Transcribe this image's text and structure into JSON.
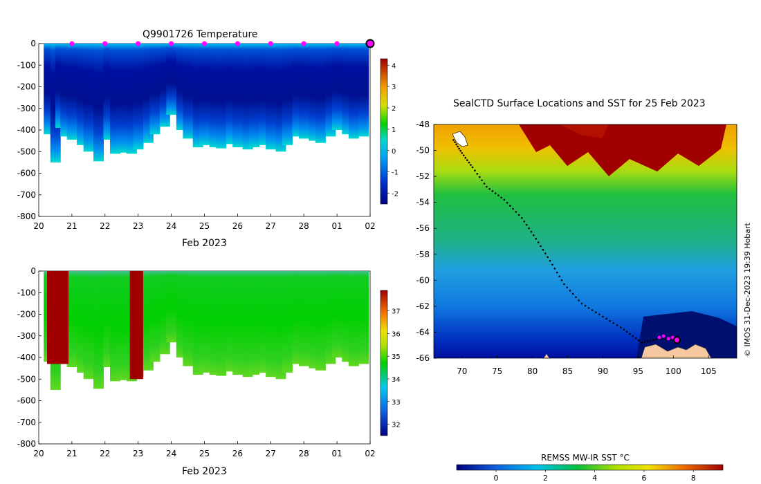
{
  "chart_data": [
    {
      "type": "heatmap",
      "title": "Q9901726  Temperature",
      "xlabel": "Feb 2023",
      "ylabel": "",
      "x_tick_labels": [
        "20",
        "21",
        "22",
        "23",
        "24",
        "25",
        "26",
        "27",
        "28",
        "01",
        "02"
      ],
      "y_tick_labels": [
        "0",
        "-100",
        "-200",
        "-300",
        "-400",
        "-500",
        "-600",
        "-700",
        "-800"
      ],
      "ylim": [
        -800,
        0
      ],
      "xlim_days": [
        0,
        10
      ],
      "colorbar": {
        "ticks": [
          "4",
          "3",
          "2",
          "1",
          "0",
          "-1",
          "-2"
        ],
        "range": [
          -2.5,
          4.3
        ]
      },
      "profile_day_offsets": [
        0.3,
        0.5,
        0.65,
        0.8,
        1.0,
        1.3,
        1.5,
        1.8,
        2.1,
        2.3,
        2.5,
        2.8,
        3.0,
        3.3,
        3.5,
        3.8,
        4.0,
        4.3,
        4.5,
        4.8,
        5.0,
        5.3,
        5.5,
        5.8,
        6.0,
        6.3,
        6.5,
        6.8,
        7.0,
        7.3,
        7.5,
        7.8,
        8.0,
        8.3,
        8.5,
        8.8,
        9.0,
        9.3,
        9.5,
        9.8
      ],
      "profile_max_depths": [
        -420,
        -550,
        -390,
        -430,
        -445,
        -470,
        -500,
        -545,
        -445,
        -510,
        -505,
        -510,
        -490,
        -460,
        -420,
        -385,
        -330,
        -400,
        -440,
        -480,
        -470,
        -480,
        -485,
        -465,
        -480,
        -490,
        -480,
        -470,
        -490,
        -500,
        -470,
        -430,
        -440,
        -450,
        -460,
        -430,
        -400,
        -420,
        -440,
        -430
      ],
      "surface_markers_day": [
        1,
        2,
        3,
        4,
        5,
        6,
        7,
        8,
        9
      ],
      "current_marker_day": 10
    },
    {
      "type": "heatmap",
      "title": "",
      "xlabel": "Feb 2023",
      "ylabel": "",
      "x_tick_labels": [
        "20",
        "21",
        "22",
        "23",
        "24",
        "25",
        "26",
        "27",
        "28",
        "01",
        "02"
      ],
      "y_tick_labels": [
        "0",
        "-100",
        "-200",
        "-300",
        "-400",
        "-500",
        "-600",
        "-700",
        "-800"
      ],
      "ylim": [
        -800,
        0
      ],
      "colorbar": {
        "ticks": [
          "37",
          "36",
          "35",
          "34",
          "33",
          "32"
        ],
        "range": [
          31.5,
          37.9
        ]
      }
    },
    {
      "type": "heatmap",
      "title": "SealCTD Surface Locations and SST for 25 Feb 2023",
      "xlabel": "",
      "ylabel": "",
      "x_tick_labels": [
        "70",
        "75",
        "80",
        "85",
        "90",
        "95",
        "100",
        "105"
      ],
      "y_tick_labels": [
        "-48",
        "-50",
        "-52",
        "-54",
        "-56",
        "-58",
        "-60",
        "-62",
        "-64",
        "-66"
      ],
      "xlim": [
        66,
        109
      ],
      "ylim": [
        -66,
        -48
      ],
      "track_lonlat": [
        [
          68.8,
          -49.2
        ],
        [
          70.0,
          -50.2
        ],
        [
          71.5,
          -51.3
        ],
        [
          73.5,
          -52.8
        ],
        [
          76.0,
          -53.8
        ],
        [
          78.5,
          -55.2
        ],
        [
          80.5,
          -56.8
        ],
        [
          82.5,
          -58.5
        ],
        [
          84.5,
          -60.3
        ],
        [
          87.0,
          -61.8
        ],
        [
          90.0,
          -62.8
        ],
        [
          93.0,
          -63.8
        ],
        [
          95.5,
          -64.8
        ],
        [
          98.0,
          -64.5
        ],
        [
          100.5,
          -64.6
        ]
      ],
      "colorbar": {
        "label": "REMSS MW-IR SST °C",
        "ticks": [
          "0",
          "2",
          "4",
          "6",
          "8"
        ],
        "range": [
          -1.6,
          9.2
        ]
      }
    }
  ],
  "credit": "© IMOS 31-Dec-2023 19:39 Hobart"
}
